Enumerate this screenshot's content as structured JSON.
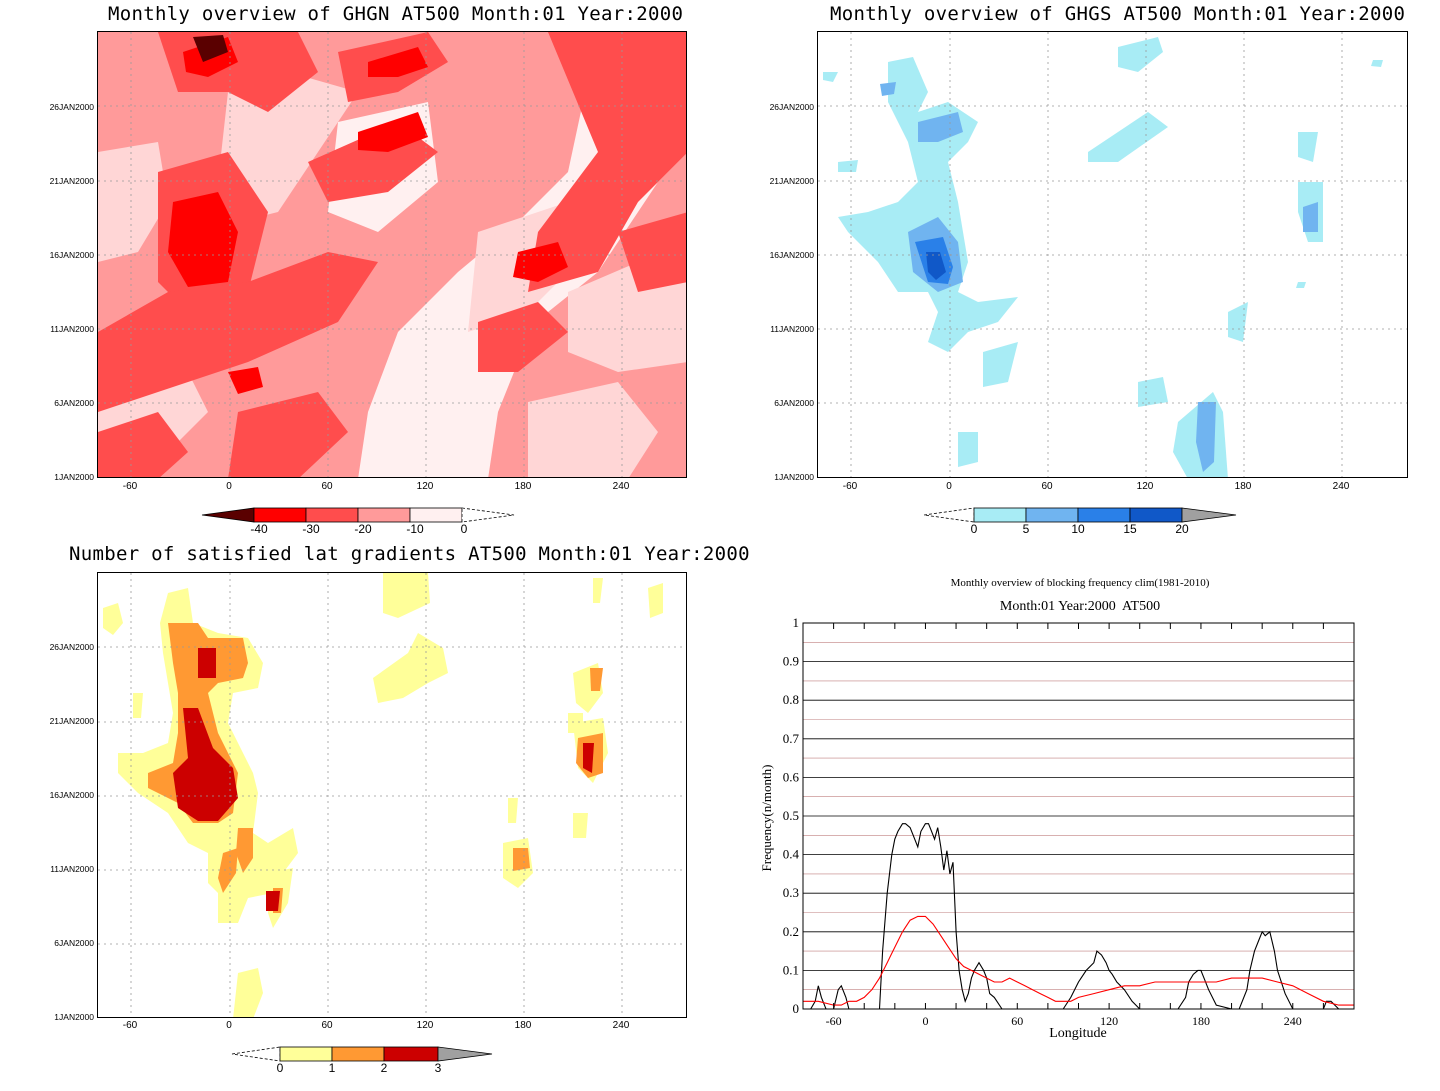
{
  "chart_data": [
    {
      "type": "heatmap",
      "title": "Monthly overview of GHGN AT500 Month:01 Year:2000",
      "y_ticks": [
        "1JAN2000",
        "6JAN2000",
        "11JAN2000",
        "16JAN2000",
        "21JAN2000",
        "26JAN2000"
      ],
      "x_ticks": [
        "-60",
        "0",
        "60",
        "120",
        "180",
        "240"
      ],
      "xlim": [
        -80,
        280
      ],
      "colorbar": {
        "levels": [
          "-40",
          "-30",
          "-20",
          "-10",
          "0"
        ],
        "colors": [
          "#5a0000",
          "#ff0000",
          "#ff4d4d",
          "#ff9a9a",
          "#ffd6d6",
          "#fff2f2"
        ]
      }
    },
    {
      "type": "heatmap",
      "title": "Monthly overview of GHGS AT500 Month:01 Year:2000",
      "y_ticks": [
        "1JAN2000",
        "6JAN2000",
        "11JAN2000",
        "16JAN2000",
        "21JAN2000",
        "26JAN2000"
      ],
      "x_ticks": [
        "-60",
        "0",
        "60",
        "120",
        "180",
        "240"
      ],
      "xlim": [
        -80,
        280
      ],
      "colorbar": {
        "levels": [
          "0",
          "5",
          "10",
          "15",
          "20"
        ],
        "colors": [
          "#ffffff",
          "#a8ecf5",
          "#70b4f0",
          "#2a80e8",
          "#1058c8",
          "#a0a0a0"
        ]
      }
    },
    {
      "type": "heatmap",
      "title": "Number of satisfied lat gradients AT500 Month:01 Year:2000",
      "y_ticks": [
        "1JAN2000",
        "6JAN2000",
        "11JAN2000",
        "16JAN2000",
        "21JAN2000",
        "26JAN2000"
      ],
      "x_ticks": [
        "-60",
        "0",
        "60",
        "120",
        "180",
        "240"
      ],
      "xlim": [
        -80,
        280
      ],
      "colorbar": {
        "levels": [
          "0",
          "1",
          "2",
          "3"
        ],
        "colors": [
          "#ffffff",
          "#ffff99",
          "#ff9933",
          "#cc0000",
          "#a0a0a0"
        ]
      }
    },
    {
      "type": "line",
      "title": "Monthly overview of blocking frequency clim(1981-2010)",
      "subtitle": "Month:01 Year:2000  AT500",
      "xlabel": "Longitude",
      "ylabel": "Frequency(n/month)",
      "xlim": [
        -80,
        280
      ],
      "ylim": [
        0,
        1
      ],
      "x_ticks": [
        "-60",
        "0",
        "60",
        "120",
        "180",
        "240"
      ],
      "y_ticks": [
        "0",
        "0.1",
        "0.2",
        "0.3",
        "0.4",
        "0.5",
        "0.6",
        "0.7",
        "0.8",
        "0.9",
        "1"
      ],
      "series": [
        {
          "color": "#000000",
          "x": [
            -80,
            -75,
            -72,
            -70,
            -68,
            -65,
            -60,
            -57,
            -55,
            -52,
            -50,
            -45,
            -40,
            -35,
            -30,
            -28,
            -25,
            -22,
            -20,
            -18,
            -15,
            -13,
            -10,
            -8,
            -5,
            -3,
            0,
            2,
            4,
            6,
            8,
            10,
            12,
            14,
            16,
            18,
            20,
            22,
            24,
            26,
            28,
            30,
            32,
            35,
            38,
            40,
            42,
            45,
            50,
            60,
            70,
            80,
            85,
            90,
            95,
            100,
            105,
            110,
            112,
            115,
            118,
            120,
            122,
            125,
            130,
            135,
            140,
            150,
            160,
            165,
            170,
            172,
            175,
            178,
            180,
            182,
            185,
            190,
            200,
            205,
            210,
            212,
            215,
            218,
            220,
            222,
            225,
            228,
            230,
            235,
            240,
            245,
            250,
            255,
            258,
            260,
            262,
            265,
            270,
            275,
            280
          ],
          "y": [
            0,
            0,
            0.02,
            0.06,
            0.03,
            0,
            0,
            0.05,
            0.06,
            0.03,
            0,
            0,
            0,
            0,
            0,
            0.15,
            0.3,
            0.4,
            0.44,
            0.46,
            0.48,
            0.48,
            0.47,
            0.45,
            0.42,
            0.46,
            0.48,
            0.48,
            0.46,
            0.44,
            0.47,
            0.42,
            0.36,
            0.41,
            0.35,
            0.38,
            0.2,
            0.1,
            0.05,
            0.02,
            0.04,
            0.08,
            0.1,
            0.12,
            0.1,
            0.08,
            0.04,
            0.03,
            0,
            0,
            0,
            0,
            0,
            0,
            0.03,
            0.07,
            0.1,
            0.12,
            0.15,
            0.14,
            0.12,
            0.1,
            0.09,
            0.07,
            0.05,
            0.02,
            0,
            0,
            0,
            0,
            0.03,
            0.07,
            0.09,
            0.1,
            0.1,
            0.08,
            0.05,
            0.01,
            0,
            0,
            0.05,
            0.1,
            0.15,
            0.18,
            0.2,
            0.19,
            0.2,
            0.15,
            0.1,
            0.04,
            0,
            0,
            0,
            0,
            0,
            0,
            0.02,
            0.02,
            0,
            0,
            0
          ]
        },
        {
          "color": "#ff0000",
          "x": [
            -80,
            -70,
            -60,
            -55,
            -50,
            -45,
            -40,
            -35,
            -30,
            -25,
            -20,
            -15,
            -10,
            -5,
            0,
            5,
            10,
            15,
            20,
            25,
            30,
            35,
            40,
            45,
            50,
            55,
            60,
            65,
            70,
            75,
            80,
            85,
            90,
            95,
            100,
            110,
            120,
            130,
            140,
            150,
            160,
            170,
            180,
            190,
            200,
            210,
            220,
            230,
            240,
            250,
            260,
            270,
            280
          ],
          "y": [
            0.02,
            0.02,
            0.01,
            0.01,
            0.02,
            0.02,
            0.03,
            0.05,
            0.08,
            0.12,
            0.16,
            0.2,
            0.23,
            0.24,
            0.24,
            0.22,
            0.19,
            0.16,
            0.13,
            0.11,
            0.1,
            0.09,
            0.08,
            0.07,
            0.07,
            0.08,
            0.07,
            0.06,
            0.05,
            0.04,
            0.03,
            0.02,
            0.02,
            0.02,
            0.03,
            0.04,
            0.05,
            0.06,
            0.06,
            0.07,
            0.07,
            0.07,
            0.07,
            0.07,
            0.08,
            0.08,
            0.08,
            0.07,
            0.06,
            0.04,
            0.02,
            0.01,
            0.01
          ]
        }
      ]
    }
  ]
}
